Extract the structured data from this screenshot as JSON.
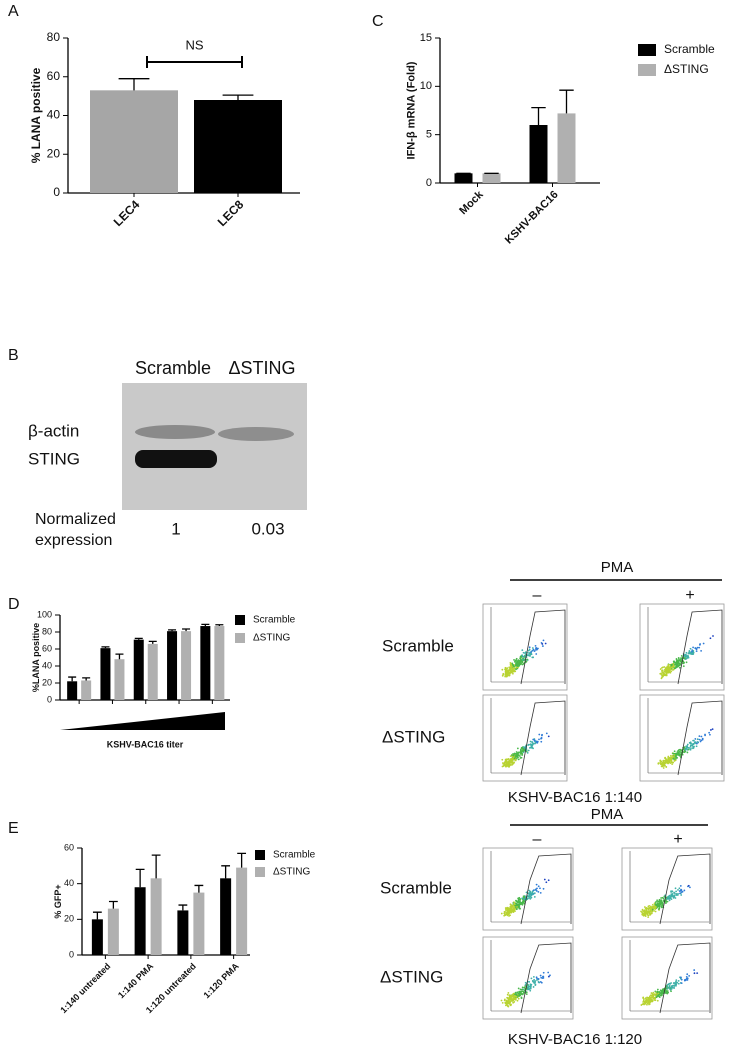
{
  "panel_labels": [
    "A",
    "B",
    "C",
    "D",
    "E"
  ],
  "chart_data": [
    {
      "type": "bar",
      "ylabel": "% LANA positive",
      "annotation": "NS",
      "categories": [
        "LEC4",
        "LEC8"
      ],
      "values": [
        53,
        48
      ],
      "errors": [
        6,
        2.5
      ],
      "colors": [
        "#a6a6a6",
        "#000000"
      ],
      "ylim": [
        0,
        80
      ],
      "yticks": [
        0,
        20,
        40,
        60,
        80
      ]
    },
    {
      "type": "grouped_bar",
      "ylabel": "IFN-β mRNA (Fold)",
      "categories": [
        "Mock",
        "KSHV-BAC16"
      ],
      "series": [
        {
          "name": "Scramble",
          "color": "#000000",
          "values": [
            1,
            6
          ],
          "errors": [
            0,
            1.8
          ]
        },
        {
          "name": "ΔSTING",
          "color": "#b0b0b0",
          "values": [
            1,
            7.2
          ],
          "errors": [
            0,
            2.4
          ]
        }
      ],
      "ylim": [
        0,
        15
      ],
      "yticks": [
        0,
        5,
        10,
        15
      ]
    },
    {
      "type": "grouped_bar",
      "ylabel": "%LANA positive",
      "xlabel": "KSHV-BAC16 titer",
      "categories": [
        null,
        null,
        null,
        null,
        null
      ],
      "series": [
        {
          "name": "Scramble",
          "color": "#000000",
          "values": [
            22,
            61,
            71,
            81,
            87
          ],
          "errors": [
            5,
            1.5,
            1.5,
            1.5,
            2
          ]
        },
        {
          "name": "ΔSTING",
          "color": "#b0b0b0",
          "values": [
            23,
            48,
            66,
            81,
            87
          ],
          "errors": [
            3,
            6,
            3,
            2.5,
            1.5
          ]
        }
      ],
      "ylim": [
        0,
        100
      ],
      "yticks": [
        0,
        20,
        40,
        60,
        80,
        100
      ]
    },
    {
      "type": "grouped_bar",
      "ylabel": "% GFP+",
      "categories": [
        "1:140 untreated",
        "1:140 PMA",
        "1:120 untreated",
        "1:120 PMA"
      ],
      "series": [
        {
          "name": "Scramble",
          "color": "#000000",
          "values": [
            20,
            38,
            25,
            43
          ],
          "errors": [
            4,
            10,
            3,
            7
          ]
        },
        {
          "name": "ΔSTING",
          "color": "#b0b0b0",
          "values": [
            26,
            43,
            35,
            49
          ],
          "errors": [
            4,
            13,
            4,
            8
          ]
        }
      ],
      "ylim": [
        0,
        60
      ],
      "yticks": [
        0,
        20,
        40,
        60
      ]
    }
  ],
  "blot": {
    "lanes": [
      "Scramble",
      "ΔSTING"
    ],
    "bands": [
      "β-actin",
      "STING"
    ],
    "row_label": [
      "Normalized",
      "expression"
    ],
    "values": [
      1,
      0.03
    ]
  },
  "flow": [
    {
      "treatment": "PMA",
      "columns": [
        "–",
        "+"
      ],
      "rows": [
        "Scramble",
        "ΔSTING"
      ],
      "caption": "KSHV-BAC16 1:140"
    },
    {
      "treatment": "PMA",
      "columns": [
        "–",
        "+"
      ],
      "rows": [
        "Scramble",
        "ΔSTING"
      ],
      "caption": "KSHV-BAC16 1:120"
    }
  ]
}
